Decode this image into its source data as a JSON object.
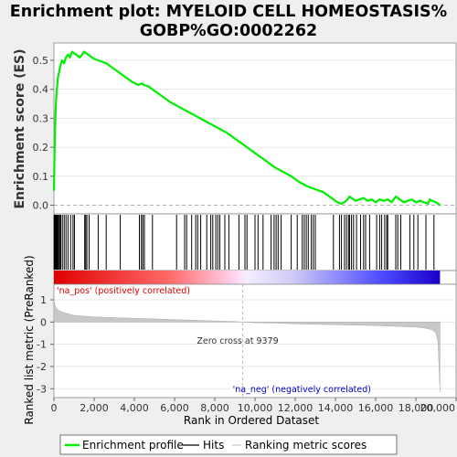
{
  "chart_data": {
    "type": "line",
    "title_line1": "Enrichment plot: MYELOID CELL HOMEOSTASIS%",
    "title_line2": "GOBP%GO:0002262",
    "es_panel": {
      "ylabel": "Enrichment score (ES)",
      "ylim": [
        -0.03,
        0.56
      ],
      "yticks": [
        "0.0",
        "0.1",
        "0.2",
        "0.3",
        "0.4",
        "0.5"
      ],
      "ytick_values": [
        0,
        0.1,
        0.2,
        0.3,
        0.4,
        0.5
      ],
      "series": [
        {
          "name": "Enrichment profile",
          "color": "#00ee00",
          "x": [
            0,
            40,
            80,
            120,
            160,
            200,
            260,
            320,
            400,
            500,
            600,
            700,
            800,
            900,
            1000,
            1100,
            1200,
            1300,
            1400,
            1500,
            1600,
            1700,
            1800,
            2000,
            2200,
            2400,
            2600,
            2800,
            3000,
            3300,
            3600,
            3900,
            4200,
            4350,
            4500,
            4700,
            5000,
            5400,
            5800,
            6200,
            6600,
            7000,
            7400,
            7800,
            8200,
            8600,
            9000,
            9400,
            9800,
            10200,
            10600,
            11000,
            11400,
            11800,
            12200,
            12600,
            13000,
            13400,
            13800,
            14100,
            14300,
            14450,
            14600,
            14700,
            14800,
            14900,
            15000,
            15200,
            15400,
            15600,
            15800,
            16000,
            16200,
            16400,
            16600,
            16800,
            17000,
            17200,
            17400,
            17600,
            17800,
            18000,
            18200,
            18400,
            18600,
            18700,
            18800,
            19000,
            19200
          ],
          "y": [
            0.05,
            0.22,
            0.32,
            0.38,
            0.41,
            0.44,
            0.46,
            0.48,
            0.5,
            0.49,
            0.51,
            0.52,
            0.51,
            0.53,
            0.525,
            0.52,
            0.515,
            0.51,
            0.52,
            0.53,
            0.525,
            0.52,
            0.515,
            0.505,
            0.5,
            0.495,
            0.49,
            0.48,
            0.47,
            0.455,
            0.44,
            0.425,
            0.415,
            0.42,
            0.415,
            0.41,
            0.395,
            0.375,
            0.355,
            0.34,
            0.325,
            0.31,
            0.295,
            0.28,
            0.265,
            0.25,
            0.23,
            0.21,
            0.19,
            0.17,
            0.15,
            0.13,
            0.115,
            0.1,
            0.08,
            0.065,
            0.055,
            0.045,
            0.025,
            0.01,
            0.005,
            0.01,
            0.02,
            0.03,
            0.025,
            0.02,
            0.015,
            0.02,
            0.025,
            0.015,
            0.02,
            0.01,
            0.02,
            0.015,
            0.02,
            0.01,
            0.03,
            0.02,
            0.01,
            0.015,
            0.02,
            0.01,
            0.015,
            0.01,
            0.005,
            0.02,
            0.015,
            0.01,
            0.0
          ]
        }
      ]
    },
    "hits": [
      10,
      30,
      50,
      75,
      100,
      130,
      160,
      200,
      240,
      290,
      340,
      420,
      510,
      600,
      700,
      830,
      950,
      1020,
      1530,
      1580,
      1640,
      1750,
      2200,
      2600,
      3300,
      4250,
      4350,
      4420,
      4500,
      4900,
      6100,
      6500,
      6600,
      6850,
      7050,
      7150,
      7300,
      7600,
      7800,
      7900,
      8050,
      8150,
      8250,
      8500,
      8700,
      9200,
      9500,
      9600,
      10000,
      10150,
      10400,
      10800,
      10950,
      11050,
      11150,
      11300,
      11800,
      12100,
      12350,
      12450,
      12550,
      12650,
      12800,
      12900,
      13000,
      13900,
      14200,
      14300,
      14450,
      14550,
      14650,
      14700,
      14800,
      14900,
      15050,
      15250,
      15400,
      15500,
      15700,
      16050,
      16200,
      16300,
      16450,
      16550,
      16600,
      17000,
      17100,
      17250,
      17700,
      17900,
      18100,
      18500,
      18900
    ],
    "metric_panel": {
      "ylabel": "Ranked list metric (PreRanked)",
      "ylim": [
        -3.4,
        1.7
      ],
      "yticks": [
        "1",
        "0",
        "-1",
        "-2",
        "-3"
      ],
      "ytick_values": [
        1,
        0,
        -1,
        -2,
        -3
      ],
      "profile_x": [
        0,
        50,
        100,
        200,
        400,
        700,
        1000,
        1500,
        2000,
        3000,
        4000,
        5000,
        6000,
        7000,
        8000,
        9000,
        9379,
        10000,
        11000,
        12000,
        13000,
        14000,
        15000,
        16000,
        17000,
        18000,
        18500,
        18800,
        19000,
        19100,
        19150,
        19200
      ],
      "profile_y": [
        1.0,
        0.75,
        0.65,
        0.55,
        0.45,
        0.37,
        0.3,
        0.26,
        0.23,
        0.2,
        0.17,
        0.14,
        0.11,
        0.08,
        0.05,
        0.02,
        0.0,
        -0.03,
        -0.05,
        -0.08,
        -0.1,
        -0.12,
        -0.14,
        -0.16,
        -0.19,
        -0.23,
        -0.28,
        -0.35,
        -0.5,
        -0.9,
        -2.0,
        -3.15
      ],
      "pos_label": "'na_pos' (positively correlated)",
      "neg_label": "'na_neg' (negatively correlated)",
      "zero_cross_label": "Zero cross at 9379",
      "zero_cross": 9379
    },
    "xaxis": {
      "label": "Rank in Ordered Dataset",
      "lim": [
        0,
        20000
      ],
      "ticks": [
        "0",
        "2,000",
        "4,000",
        "6,000",
        "8,000",
        "10,000",
        "12,000",
        "14,000",
        "16,000",
        "18,000",
        "20,000"
      ],
      "tick_values": [
        0,
        2000,
        4000,
        6000,
        8000,
        10000,
        12000,
        14000,
        16000,
        18000,
        20000
      ]
    },
    "legend": {
      "placement": "bottom",
      "items": [
        {
          "label": "Enrichment profile",
          "color": "#00ee00"
        },
        {
          "label": "Hits",
          "color": "#000000"
        },
        {
          "label": "Ranking metric scores",
          "color": "#c8c8c8"
        }
      ]
    },
    "colors": {
      "pos": "#ff0000",
      "neg": "#0000ff",
      "zero": "#aaaaaa"
    }
  }
}
